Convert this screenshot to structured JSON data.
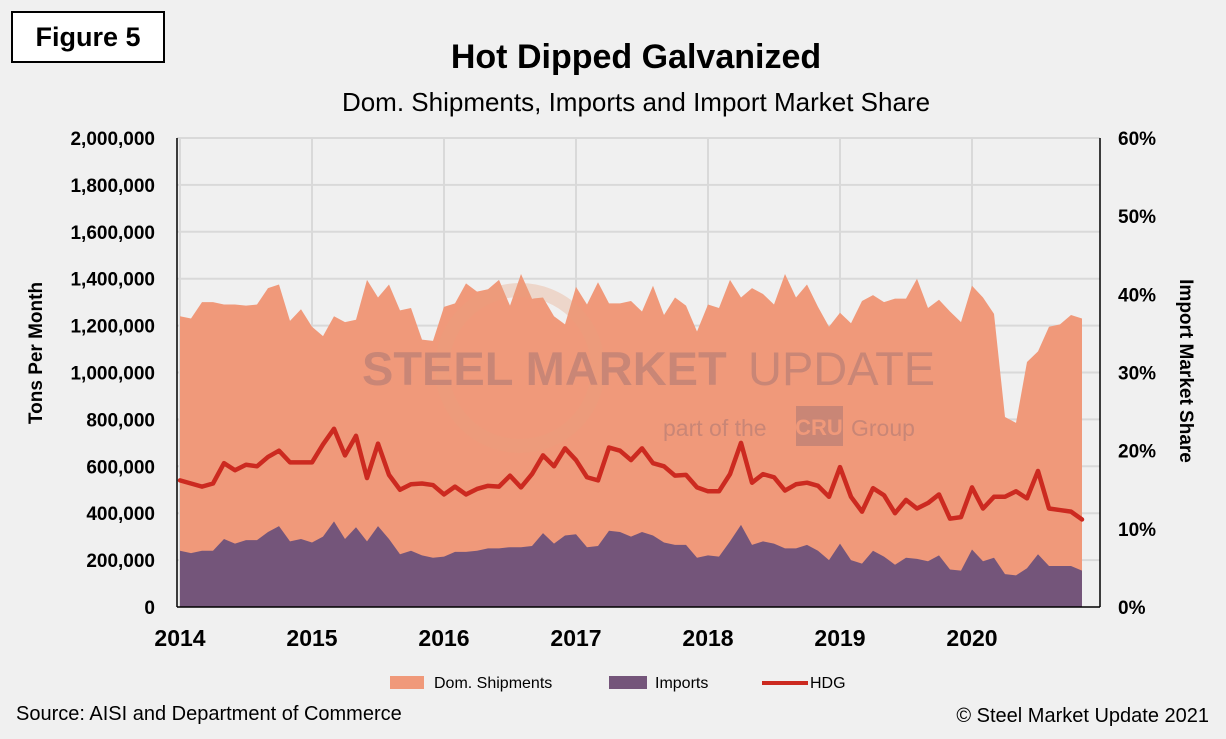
{
  "figure_label": "Figure 5",
  "source": "Source: AISI and Department of Commerce",
  "copyright": "© Steel Market Update 2021",
  "watermark": {
    "line1_bold": "STEEL MARKET",
    "line1_light": "UPDATE",
    "line2_left": "part of the",
    "line2_badge": "CRU",
    "line2_right": "Group"
  },
  "colors": {
    "dom_shipments": "#f0997a",
    "imports": "#74557a",
    "hdg": "#cc2a20",
    "grid": "#d9d9d9"
  },
  "chart_data": {
    "type": "area",
    "title": "Hot Dipped Galvanized",
    "subtitle": "Dom. Shipments, Imports and Import Market Share",
    "ylabel": "Tons Per Month",
    "y2label": "Import Market Share",
    "ylim": [
      0,
      2000000
    ],
    "y2lim": [
      0,
      60
    ],
    "yticks": [
      "0",
      "200,000",
      "400,000",
      "600,000",
      "800,000",
      "1,000,000",
      "1,200,000",
      "1,400,000",
      "1,600,000",
      "1,800,000",
      "2,000,000"
    ],
    "y2ticks": [
      "0%",
      "10%",
      "20%",
      "30%",
      "40%",
      "50%",
      "60%"
    ],
    "xticks": [
      "2014",
      "2015",
      "2016",
      "2017",
      "2018",
      "2019",
      "2020"
    ],
    "x_start": "2014-01",
    "x_frequency": "monthly",
    "grid": true,
    "legend_position": "bottom",
    "series": [
      {
        "name": "Dom. Shipments",
        "type": "area",
        "axis": "left",
        "values": [
          1240000,
          1230000,
          1300000,
          1300000,
          1290000,
          1290000,
          1285000,
          1290000,
          1360000,
          1375000,
          1220000,
          1270000,
          1195000,
          1155000,
          1240000,
          1215000,
          1225000,
          1395000,
          1320000,
          1375000,
          1265000,
          1275000,
          1140000,
          1135000,
          1280000,
          1295000,
          1380000,
          1345000,
          1355000,
          1395000,
          1285000,
          1420000,
          1315000,
          1320000,
          1240000,
          1205000,
          1365000,
          1290000,
          1385000,
          1295000,
          1295000,
          1305000,
          1260000,
          1370000,
          1245000,
          1320000,
          1285000,
          1175000,
          1290000,
          1275000,
          1395000,
          1320000,
          1360000,
          1335000,
          1290000,
          1420000,
          1320000,
          1375000,
          1280000,
          1195000,
          1255000,
          1210000,
          1305000,
          1330000,
          1300000,
          1315000,
          1315000,
          1400000,
          1275000,
          1310000,
          1260000,
          1215000,
          1370000,
          1320000,
          1250000,
          810000,
          785000,
          1045000,
          1090000,
          1195000,
          1205000,
          1245000,
          1230000
        ]
      },
      {
        "name": "Imports",
        "type": "area",
        "axis": "left",
        "values": [
          240000,
          230000,
          240000,
          240000,
          290000,
          270000,
          285000,
          285000,
          320000,
          345000,
          280000,
          290000,
          275000,
          300000,
          365000,
          290000,
          340000,
          280000,
          345000,
          290000,
          225000,
          240000,
          220000,
          210000,
          215000,
          235000,
          235000,
          240000,
          250000,
          250000,
          255000,
          255000,
          260000,
          315000,
          270000,
          305000,
          310000,
          255000,
          260000,
          325000,
          320000,
          300000,
          320000,
          305000,
          275000,
          265000,
          265000,
          210000,
          220000,
          215000,
          280000,
          350000,
          265000,
          280000,
          270000,
          250000,
          250000,
          265000,
          240000,
          200000,
          270000,
          200000,
          185000,
          240000,
          215000,
          180000,
          210000,
          205000,
          195000,
          220000,
          160000,
          155000,
          245000,
          195000,
          210000,
          140000,
          135000,
          165000,
          225000,
          175000,
          175000,
          175000,
          155000
        ]
      },
      {
        "name": "HDG",
        "type": "line",
        "axis": "right",
        "values": [
          16.2,
          15.8,
          15.4,
          15.8,
          18.4,
          17.5,
          18.2,
          18.0,
          19.2,
          20.0,
          18.5,
          18.5,
          18.5,
          20.8,
          22.8,
          19.4,
          21.9,
          16.5,
          20.9,
          16.9,
          15.0,
          15.7,
          15.8,
          15.6,
          14.4,
          15.4,
          14.4,
          15.1,
          15.5,
          15.4,
          16.8,
          15.3,
          17.0,
          19.4,
          18.0,
          20.3,
          18.8,
          16.6,
          16.2,
          20.4,
          20.0,
          18.8,
          20.3,
          18.4,
          18.0,
          16.8,
          16.9,
          15.3,
          14.8,
          14.8,
          17.0,
          21.0,
          15.9,
          17.0,
          16.6,
          14.9,
          15.7,
          15.9,
          15.5,
          14.1,
          17.9,
          14.1,
          12.2,
          15.2,
          14.3,
          12.0,
          13.7,
          12.6,
          13.3,
          14.4,
          11.3,
          11.5,
          15.3,
          12.6,
          14.1,
          14.1,
          14.8,
          13.9,
          17.4,
          12.6,
          12.4,
          12.2,
          11.2
        ]
      }
    ]
  }
}
